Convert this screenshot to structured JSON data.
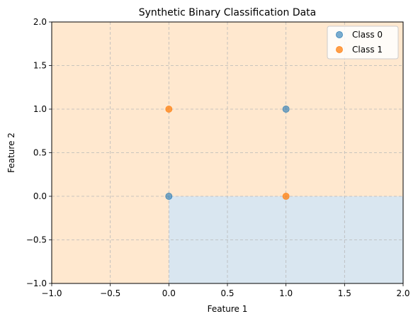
{
  "chart_data": {
    "type": "scatter",
    "title": "Synthetic Binary Classification Data",
    "xlabel": "Feature 1",
    "ylabel": "Feature 2",
    "xlim": [
      -1.0,
      2.0
    ],
    "ylim": [
      -1.0,
      2.0
    ],
    "xticks": [
      -1.0,
      -0.5,
      0.0,
      0.5,
      1.0,
      1.5,
      2.0
    ],
    "yticks": [
      -1.0,
      -0.5,
      0.0,
      0.5,
      1.0,
      1.5,
      2.0
    ],
    "xtick_labels": [
      "−1.0",
      "−0.5",
      "0.0",
      "0.5",
      "1.0",
      "1.5",
      "2.0"
    ],
    "ytick_labels": [
      "−1.0",
      "−0.5",
      "0.0",
      "0.5",
      "1.0",
      "1.5",
      "2.0"
    ],
    "grid": true,
    "legend_position": "top-right",
    "decision_regions": [
      {
        "class": "Class 0",
        "x": [
          0.0,
          2.0
        ],
        "y": [
          -1.0,
          0.0
        ],
        "color": "#d9e6f0"
      },
      {
        "class": "Class 1",
        "rest_of_plot": true,
        "color": "#ffe8cf"
      }
    ],
    "series": [
      {
        "name": "Class 0",
        "color": "#1f77b4",
        "alpha": 0.6,
        "points": [
          [
            0.0,
            0.0
          ],
          [
            1.0,
            1.0
          ]
        ]
      },
      {
        "name": "Class 1",
        "color": "#ff7f0e",
        "alpha": 0.75,
        "points": [
          [
            0.0,
            1.0
          ],
          [
            1.0,
            0.0
          ]
        ]
      }
    ]
  }
}
